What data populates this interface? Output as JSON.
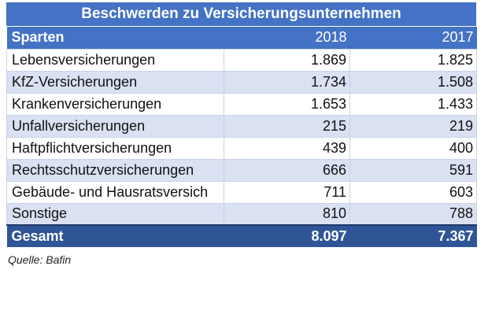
{
  "table": {
    "title": "Beschwerden zu Versicherungsunternehmen",
    "headers": [
      "Sparten",
      "2018",
      "2017"
    ],
    "rows": [
      [
        "Lebensversicherungen",
        "1.869",
        "1.825"
      ],
      [
        "KfZ-Versicherungen",
        "1.734",
        "1.508"
      ],
      [
        "Krankenversicherungen",
        "1.653",
        "1.433"
      ],
      [
        "Unfallversicherungen",
        "215",
        "219"
      ],
      [
        "Haftpflichtversicherungen",
        "439",
        "400"
      ],
      [
        "Rechtsschutzversicherungen",
        "666",
        "591"
      ],
      [
        "Gebäude- und Hausratsversich",
        "711",
        "603"
      ],
      [
        "Sonstige",
        "810",
        "788"
      ]
    ],
    "total": [
      "Gesamt",
      "8.097",
      "7.367"
    ],
    "source": "Quelle: Bafin"
  },
  "colors": {
    "header": "#4472c4",
    "band": "#d9e1f2",
    "total": "#2f5597"
  }
}
